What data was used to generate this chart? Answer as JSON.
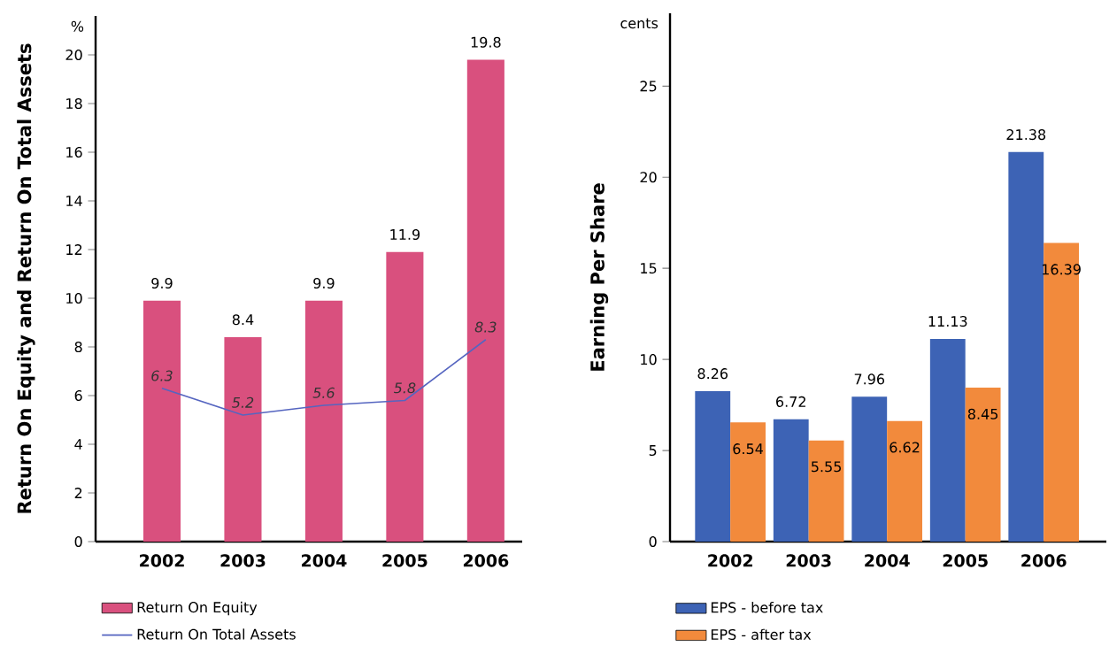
{
  "chart_data": [
    {
      "type": "bar",
      "categories": [
        "2002",
        "2003",
        "2004",
        "2005",
        "2006"
      ],
      "ylabel": "Return On Equity and Return On Total Assets",
      "ylim": [
        0,
        21.6
      ],
      "yticks": [
        0,
        2,
        4,
        6,
        8,
        10,
        12,
        14,
        16,
        18,
        20
      ],
      "data_labels": true,
      "legend": "bottom",
      "annotations": [
        "%"
      ],
      "series": [
        {
          "name": "Return On Equity",
          "color": "#d9507e",
          "values": [
            9.9,
            8.4,
            9.9,
            11.9,
            19.8
          ]
        },
        {
          "name": "Return On Total Assets",
          "type": "line",
          "color": "#5565c0",
          "values": [
            6.3,
            5.2,
            5.6,
            5.8,
            8.3
          ]
        }
      ]
    },
    {
      "type": "bar",
      "categories": [
        "2002",
        "2003",
        "2004",
        "2005",
        "2006"
      ],
      "ylabel": "Earning Per Share",
      "ylim": [
        0,
        29
      ],
      "yticks": [
        0,
        5,
        10,
        15,
        20,
        25
      ],
      "data_labels": true,
      "legend": "bottom",
      "annotations": [
        "cents"
      ],
      "series": [
        {
          "name": "EPS - before tax",
          "color": "#3d63b5",
          "values": [
            8.26,
            6.72,
            7.96,
            11.13,
            21.38
          ]
        },
        {
          "name": "EPS - after tax",
          "color": "#f28a3c",
          "values": [
            6.54,
            5.55,
            6.62,
            8.45,
            16.39
          ]
        }
      ]
    }
  ]
}
